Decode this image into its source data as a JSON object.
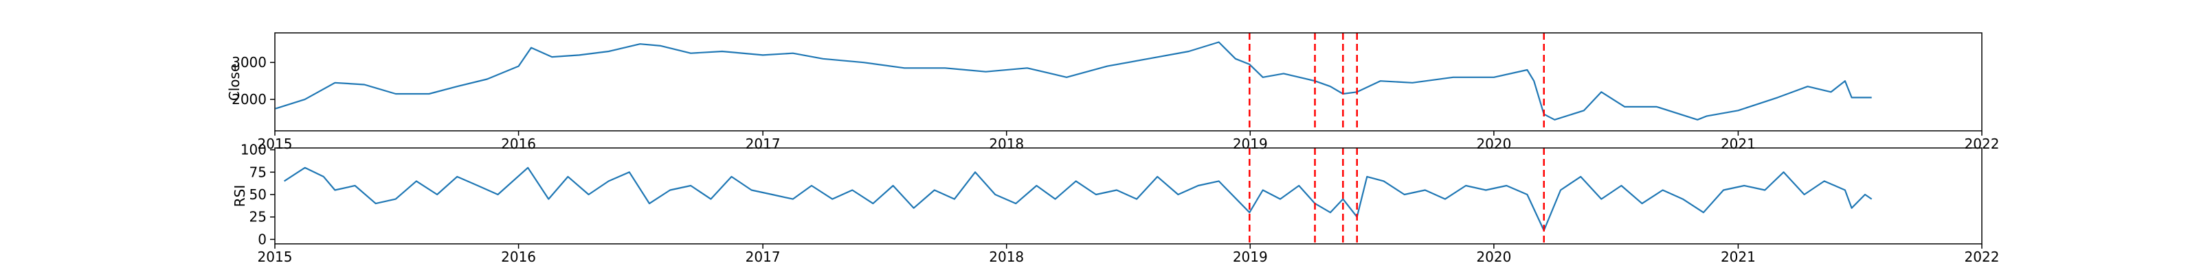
{
  "chart_data": [
    {
      "type": "line",
      "title": "",
      "xlabel": "",
      "ylabel": "Close",
      "xlim": [
        "2015-01-01",
        "2022-01-01"
      ],
      "ylim": [
        1150,
        3800
      ],
      "x_ticks": [
        "2015",
        "2016",
        "2017",
        "2018",
        "2019",
        "2020",
        "2021",
        "2022"
      ],
      "y_ticks": [
        2000,
        3000
      ],
      "series_color": "#1f77b4",
      "vline_color": "#ff0000",
      "vline_dates": [
        "2018-12-31",
        "2019-04-08",
        "2019-05-20",
        "2019-06-10",
        "2020-03-16"
      ],
      "series": [
        {
          "x": [
            "2015-01-02",
            "2015-02-15",
            "2015-04-01",
            "2015-05-15",
            "2015-07-01",
            "2015-08-20",
            "2015-10-01",
            "2015-11-15",
            "2016-01-01",
            "2016-01-20",
            "2016-02-20",
            "2016-04-01",
            "2016-05-15",
            "2016-07-01",
            "2016-08-01",
            "2016-09-15",
            "2016-11-01",
            "2017-01-01",
            "2017-02-15",
            "2017-04-01",
            "2017-06-01",
            "2017-08-01",
            "2017-10-01",
            "2017-12-01",
            "2018-02-01",
            "2018-04-01",
            "2018-06-01",
            "2018-08-01",
            "2018-10-01",
            "2018-11-15",
            "2018-12-10",
            "2018-12-31",
            "2019-01-20",
            "2019-02-20",
            "2019-04-08",
            "2019-05-01",
            "2019-05-20",
            "2019-06-10",
            "2019-07-15",
            "2019-09-01",
            "2019-11-01",
            "2020-01-01",
            "2020-02-20",
            "2020-03-01",
            "2020-03-16",
            "2020-04-01",
            "2020-05-15",
            "2020-06-10",
            "2020-07-15",
            "2020-09-01",
            "2020-11-01",
            "2020-11-15",
            "2021-01-01",
            "2021-03-01",
            "2021-04-15",
            "2021-05-20",
            "2021-06-10",
            "2021-06-20",
            "2021-07-20"
          ],
          "y": [
            1750,
            2000,
            2450,
            2400,
            2150,
            2150,
            2350,
            2550,
            2900,
            3400,
            3150,
            3200,
            3300,
            3500,
            3450,
            3250,
            3300,
            3200,
            3250,
            3100,
            3000,
            2850,
            2850,
            2750,
            2850,
            2600,
            2900,
            3100,
            3300,
            3550,
            3100,
            2950,
            2600,
            2700,
            2500,
            2350,
            2150,
            2200,
            2500,
            2450,
            2600,
            2600,
            2800,
            2500,
            1600,
            1450,
            1700,
            2200,
            1800,
            1800,
            1450,
            1550,
            1700,
            2050,
            2350,
            2200,
            2500,
            2050,
            2050
          ]
        }
      ]
    },
    {
      "type": "line",
      "title": "",
      "xlabel": "",
      "ylabel": "RSI",
      "xlim": [
        "2015-01-01",
        "2022-01-01"
      ],
      "ylim": [
        -5,
        102
      ],
      "x_ticks": [
        "2015",
        "2016",
        "2017",
        "2018",
        "2019",
        "2020",
        "2021",
        "2022"
      ],
      "y_ticks": [
        0,
        25,
        50,
        75,
        100
      ],
      "series_color": "#1f77b4",
      "vline_color": "#ff0000",
      "vline_dates": [
        "2018-12-31",
        "2019-04-08",
        "2019-05-20",
        "2019-06-10",
        "2020-03-16"
      ],
      "series": [
        {
          "x": [
            "2015-01-15",
            "2015-02-15",
            "2015-03-15",
            "2015-04-01",
            "2015-05-01",
            "2015-06-01",
            "2015-07-01",
            "2015-08-01",
            "2015-09-01",
            "2015-10-01",
            "2015-11-01",
            "2015-12-01",
            "2016-01-15",
            "2016-02-15",
            "2016-03-15",
            "2016-04-15",
            "2016-05-15",
            "2016-06-15",
            "2016-07-15",
            "2016-08-15",
            "2016-09-15",
            "2016-10-15",
            "2016-11-15",
            "2016-12-15",
            "2017-01-15",
            "2017-02-15",
            "2017-03-15",
            "2017-04-15",
            "2017-05-15",
            "2017-06-15",
            "2017-07-15",
            "2017-08-15",
            "2017-09-15",
            "2017-10-15",
            "2017-11-15",
            "2017-12-15",
            "2018-01-15",
            "2018-02-15",
            "2018-03-15",
            "2018-04-15",
            "2018-05-15",
            "2018-06-15",
            "2018-07-15",
            "2018-08-15",
            "2018-09-15",
            "2018-10-15",
            "2018-11-15",
            "2018-12-31",
            "2019-01-20",
            "2019-02-15",
            "2019-03-15",
            "2019-04-08",
            "2019-05-01",
            "2019-05-20",
            "2019-06-10",
            "2019-06-25",
            "2019-07-20",
            "2019-08-20",
            "2019-09-20",
            "2019-10-20",
            "2019-11-20",
            "2019-12-20",
            "2020-01-20",
            "2020-02-20",
            "2020-03-16",
            "2020-04-10",
            "2020-05-10",
            "2020-06-10",
            "2020-07-10",
            "2020-08-10",
            "2020-09-10",
            "2020-10-10",
            "2020-11-10",
            "2020-12-10",
            "2021-01-10",
            "2021-02-10",
            "2021-03-10",
            "2021-04-10",
            "2021-05-10",
            "2021-06-10",
            "2021-06-20",
            "2021-07-10",
            "2021-07-20"
          ],
          "y": [
            65,
            80,
            70,
            55,
            60,
            40,
            45,
            65,
            50,
            70,
            60,
            50,
            80,
            45,
            70,
            50,
            65,
            75,
            40,
            55,
            60,
            45,
            70,
            55,
            50,
            45,
            60,
            45,
            55,
            40,
            60,
            35,
            55,
            45,
            75,
            50,
            40,
            60,
            45,
            65,
            50,
            55,
            45,
            70,
            50,
            60,
            65,
            30,
            55,
            45,
            60,
            40,
            30,
            45,
            25,
            70,
            65,
            50,
            55,
            45,
            60,
            55,
            60,
            50,
            10,
            55,
            70,
            45,
            60,
            40,
            55,
            45,
            30,
            55,
            60,
            55,
            75,
            50,
            65,
            55,
            35,
            50,
            45
          ]
        }
      ]
    }
  ]
}
